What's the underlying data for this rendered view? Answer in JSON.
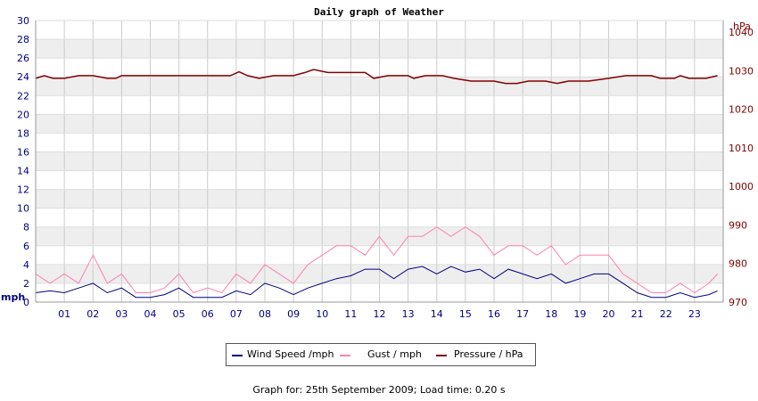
{
  "chart_data": {
    "type": "line",
    "title": "Daily graph of Weather",
    "y_left": {
      "unit": "mph",
      "range": [
        0,
        30
      ],
      "ticks": [
        "0",
        "2",
        "4",
        "6",
        "8",
        "10",
        "12",
        "14",
        "16",
        "18",
        "20",
        "22",
        "24",
        "26",
        "28",
        "30"
      ]
    },
    "y_right": {
      "unit": "hPa",
      "range": [
        970,
        1043
      ],
      "ticks": [
        "970",
        "980",
        "990",
        "1000",
        "1010",
        "1020",
        "1030",
        "1040"
      ]
    },
    "x": {
      "range": [
        0,
        24
      ],
      "ticks": [
        "01",
        "02",
        "03",
        "04",
        "05",
        "06",
        "07",
        "08",
        "09",
        "10",
        "11",
        "12",
        "13",
        "14",
        "15",
        "16",
        "17",
        "18",
        "19",
        "20",
        "21",
        "22",
        "23"
      ]
    },
    "grid": true,
    "legend_position": "bottom",
    "series": [
      {
        "name": "Wind Speed /mph",
        "color": "#000080",
        "axis": "left",
        "x": [
          0,
          0.5,
          1,
          1.5,
          2,
          2.5,
          3,
          3.5,
          4,
          4.5,
          5,
          5.5,
          6,
          6.5,
          7,
          7.5,
          8,
          8.5,
          9,
          9.5,
          10,
          10.5,
          11,
          11.5,
          12,
          12.5,
          13,
          13.5,
          14,
          14.5,
          15,
          15.5,
          16,
          16.5,
          17,
          17.5,
          18,
          18.5,
          19,
          19.5,
          20,
          20.5,
          21,
          21.5,
          22,
          22.5,
          23,
          23.5,
          23.8
        ],
        "values": [
          1.0,
          1.2,
          1.0,
          1.5,
          2.0,
          1.0,
          1.5,
          0.5,
          0.5,
          0.8,
          1.5,
          0.5,
          0.5,
          0.5,
          1.2,
          0.8,
          2.0,
          1.5,
          0.8,
          1.5,
          2.0,
          2.5,
          2.8,
          3.5,
          3.5,
          2.5,
          3.5,
          3.8,
          3.0,
          3.8,
          3.2,
          3.5,
          2.5,
          3.5,
          3.0,
          2.5,
          3.0,
          2.0,
          2.5,
          3.0,
          3.0,
          2.0,
          1.0,
          0.5,
          0.5,
          1.0,
          0.5,
          0.8,
          1.2
        ]
      },
      {
        "name": "Gust / mph",
        "color": "#ff80b0",
        "axis": "left",
        "x": [
          0,
          0.5,
          1,
          1.5,
          2,
          2.5,
          3,
          3.5,
          4,
          4.5,
          5,
          5.5,
          6,
          6.5,
          7,
          7.5,
          8,
          8.5,
          9,
          9.5,
          10,
          10.5,
          11,
          11.5,
          12,
          12.5,
          13,
          13.5,
          14,
          14.5,
          15,
          15.5,
          16,
          16.5,
          17,
          17.5,
          18,
          18.5,
          19,
          19.5,
          20,
          20.5,
          21,
          21.5,
          22,
          22.5,
          23,
          23.5,
          23.8
        ],
        "values": [
          3.0,
          2.0,
          3.0,
          2.0,
          5.0,
          2.0,
          3.0,
          1.0,
          1.0,
          1.5,
          3.0,
          1.0,
          1.5,
          1.0,
          3.0,
          2.0,
          4.0,
          3.0,
          2.0,
          4.0,
          5.0,
          6.0,
          6.0,
          5.0,
          7.0,
          5.0,
          7.0,
          7.0,
          8.0,
          7.0,
          8.0,
          7.0,
          5.0,
          6.0,
          6.0,
          5.0,
          6.0,
          4.0,
          5.0,
          5.0,
          5.0,
          3.0,
          2.0,
          1.0,
          1.0,
          2.0,
          1.0,
          2.0,
          3.0
        ]
      },
      {
        "name": "Pressure / hPa",
        "color": "#800000",
        "axis": "right",
        "x": [
          0,
          0.3,
          0.6,
          1,
          1.5,
          2,
          2.5,
          2.8,
          3,
          4,
          5,
          6,
          6.8,
          7.1,
          7.4,
          7.8,
          8.3,
          9,
          9.4,
          9.7,
          10.2,
          11,
          11.5,
          11.8,
          12.3,
          13,
          13.2,
          13.6,
          14.2,
          14.6,
          15.2,
          16,
          16.4,
          16.8,
          17.2,
          17.8,
          18.2,
          18.6,
          19.3,
          20,
          20.6,
          21.2,
          21.5,
          21.8,
          22.3,
          22.5,
          22.8,
          23.4,
          23.8
        ],
        "values": [
          1028.0,
          1028.7,
          1028.0,
          1028.0,
          1028.7,
          1028.7,
          1028.0,
          1028.0,
          1028.7,
          1028.7,
          1028.7,
          1028.7,
          1028.7,
          1029.7,
          1028.7,
          1028.0,
          1028.7,
          1028.7,
          1029.5,
          1030.3,
          1029.5,
          1029.5,
          1029.5,
          1028.0,
          1028.7,
          1028.7,
          1028.0,
          1028.7,
          1028.7,
          1028.0,
          1027.3,
          1027.3,
          1026.7,
          1026.7,
          1027.3,
          1027.3,
          1026.7,
          1027.3,
          1027.3,
          1028.0,
          1028.7,
          1028.7,
          1028.7,
          1028.0,
          1028.0,
          1028.7,
          1028.0,
          1028.0,
          1028.7
        ]
      }
    ]
  },
  "footer": {
    "text": "Graph for: 25th September 2009; Load time: 0.20 s"
  }
}
